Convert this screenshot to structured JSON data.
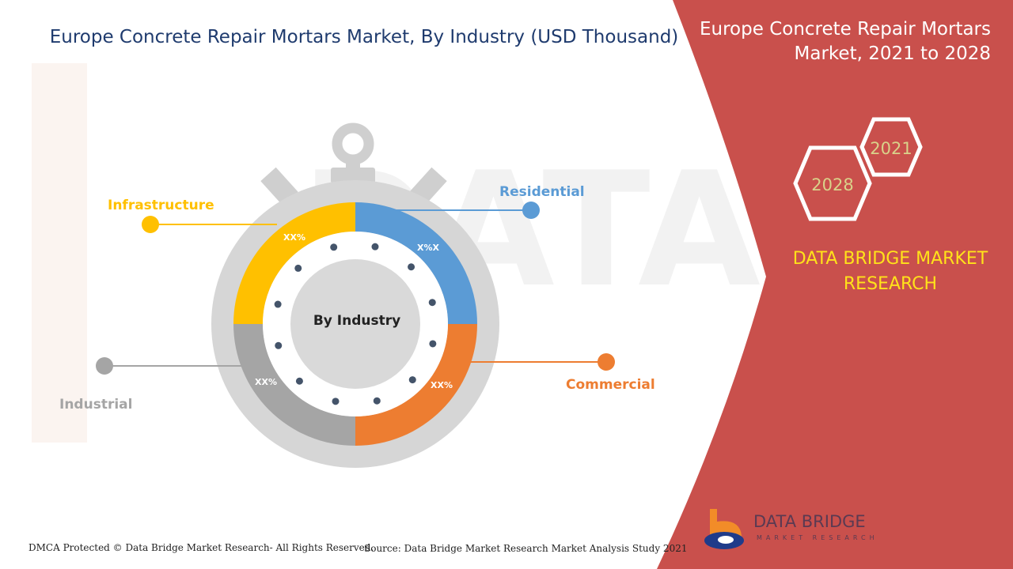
{
  "title": "Europe Concrete Repair Mortars Market, By Industry (USD Thousand)",
  "side_panel": {
    "title": "Europe Concrete Repair Mortars Market, 2021 to 2028",
    "year_start": "2021",
    "year_end": "2028",
    "brand": "DATA BRIDGE MARKET RESEARCH",
    "panel_color": "#c9504c",
    "brand_color": "#ffe21a"
  },
  "chart_data": {
    "type": "pie",
    "style": "donut",
    "center_label": "By Industry",
    "segments": [
      {
        "name": "Infrastructure",
        "label": "XX%",
        "share": 0.25,
        "color": "#ffc000"
      },
      {
        "name": "Residential",
        "label": "X%X",
        "share": 0.25,
        "color": "#5b9bd5"
      },
      {
        "name": "Commercial",
        "label": "XX%",
        "share": 0.25,
        "color": "#ed7d31"
      },
      {
        "name": "Industrial",
        "label": "XX%",
        "share": 0.25,
        "color": "#a5a5a5"
      }
    ]
  },
  "footer": {
    "copyright": "DMCA Protected © Data Bridge Market Research- All Rights Reserved.",
    "source": "Source: Data Bridge Market Research Market Analysis Study 2021"
  },
  "logo": {
    "name": "DATA BRIDGE",
    "tagline": "MARKET RESEARCH"
  }
}
